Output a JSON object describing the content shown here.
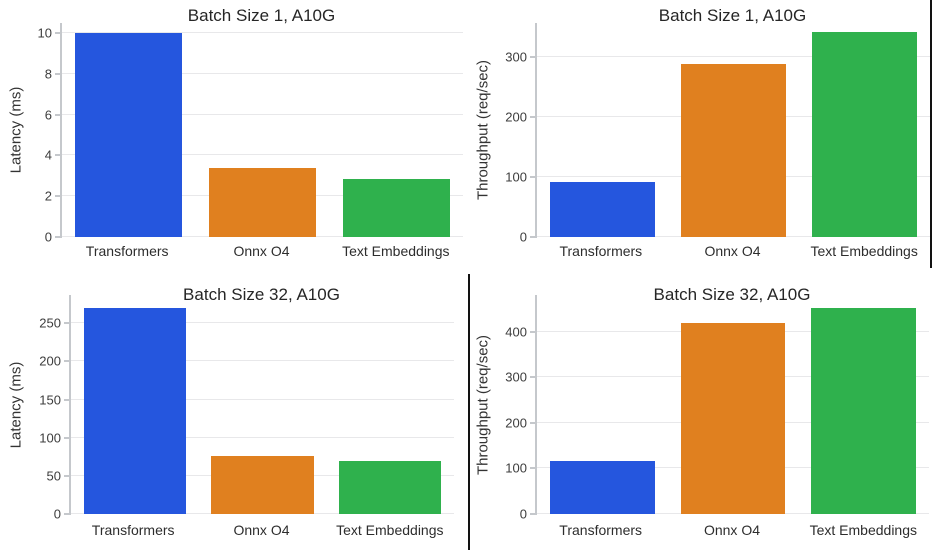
{
  "figure": {
    "background": "#ffffff",
    "palette": {
      "blue": "#2556de",
      "orange": "#e0801f",
      "green": "#2fb14d"
    },
    "axis_style": {
      "spine_color": "#c5c8cc",
      "gridline_color": "#e8e8ea",
      "tick_label_color": "#3d3d3d",
      "title_color": "#262626",
      "border_line_color": "#121212"
    }
  },
  "chart_data": [
    {
      "id": "batch1-latency",
      "type": "bar",
      "title": "Batch Size 1, A10G",
      "xlabel": "",
      "ylabel": "Latency (ms)",
      "categories": [
        "Transformers",
        "Onnx O4",
        "Text Embeddings"
      ],
      "values": [
        10.0,
        3.4,
        2.85
      ],
      "bar_colors": [
        "blue",
        "orange",
        "green"
      ],
      "yticks": [
        0,
        2,
        4,
        6,
        8,
        10
      ],
      "ylim": [
        0,
        10.5
      ],
      "grid": true,
      "legend": "none"
    },
    {
      "id": "batch1-throughput",
      "type": "bar",
      "title": "Batch Size 1, A10G",
      "xlabel": "",
      "ylabel": "Throughput (req/sec)",
      "categories": [
        "Transformers",
        "Onnx O4",
        "Text Embeddings"
      ],
      "values": [
        92,
        288,
        342
      ],
      "bar_colors": [
        "blue",
        "orange",
        "green"
      ],
      "yticks": [
        0,
        100,
        200,
        300
      ],
      "ylim": [
        0,
        357
      ],
      "grid": true,
      "legend": "none"
    },
    {
      "id": "batch32-latency",
      "type": "bar",
      "title": "Batch Size 32, A10G",
      "xlabel": "",
      "ylabel": "Latency (ms)",
      "categories": [
        "Transformers",
        "Onnx O4",
        "Text Embeddings"
      ],
      "values": [
        270,
        76,
        69
      ],
      "bar_colors": [
        "blue",
        "orange",
        "green"
      ],
      "yticks": [
        0,
        50,
        100,
        150,
        200,
        250
      ],
      "ylim": [
        0,
        287
      ],
      "grid": true,
      "legend": "none"
    },
    {
      "id": "batch32-throughput",
      "type": "bar",
      "title": "Batch Size 32, A10G",
      "xlabel": "",
      "ylabel": "Throughput (req/sec)",
      "categories": [
        "Transformers",
        "Onnx O4",
        "Text Embeddings"
      ],
      "values": [
        117,
        420,
        452
      ],
      "bar_colors": [
        "blue",
        "orange",
        "green"
      ],
      "yticks": [
        0,
        100,
        200,
        300,
        400
      ],
      "ylim": [
        0,
        481
      ],
      "grid": true,
      "legend": "none"
    }
  ],
  "decorations": {
    "top_right_vertical_border": true,
    "bottom_middle_vertical_border": true
  }
}
